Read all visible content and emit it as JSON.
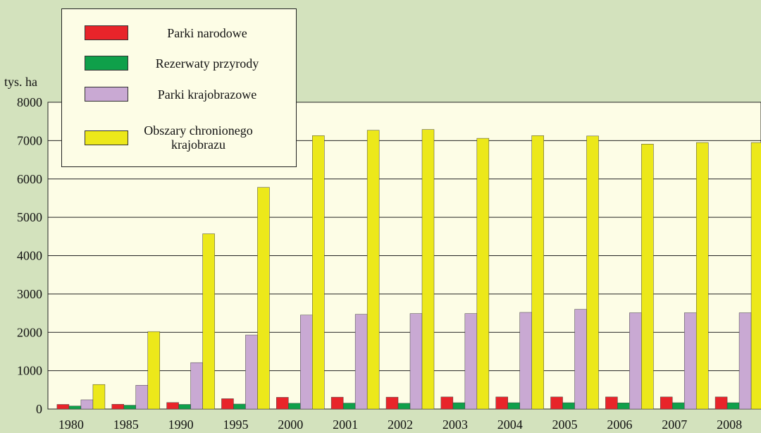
{
  "chart_data": {
    "type": "bar",
    "y_label": "tys. ha",
    "categories": [
      "1980",
      "1985",
      "1990",
      "1995",
      "2000",
      "2001",
      "2002",
      "2003",
      "2004",
      "2005",
      "2006",
      "2007",
      "2008"
    ],
    "series": [
      {
        "name": "Parki narodowe",
        "color": "#e8242a",
        "values": [
          120,
          125,
          170,
          270,
          305,
          310,
          310,
          315,
          315,
          315,
          315,
          315,
          315
        ]
      },
      {
        "name": "Rezerwaty przyrody",
        "color": "#0fa04a",
        "values": [
          80,
          100,
          120,
          130,
          150,
          155,
          150,
          165,
          165,
          165,
          160,
          165,
          165
        ]
      },
      {
        "name": "Parki krajobrazowe",
        "color": "#c9a9d3",
        "values": [
          240,
          620,
          1210,
          1930,
          2450,
          2470,
          2490,
          2490,
          2520,
          2600,
          2510,
          2510,
          2510
        ]
      },
      {
        "name": "Obszary chronionego krajobrazu",
        "color": "#ece81a",
        "values": [
          640,
          2020,
          4570,
          5780,
          7130,
          7270,
          7290,
          7060,
          7130,
          7120,
          6910,
          6950,
          6950
        ]
      }
    ],
    "ylim": [
      0,
      8000
    ],
    "yticks": [
      0,
      1000,
      2000,
      3000,
      4000,
      5000,
      6000,
      7000,
      8000
    ],
    "grid": true,
    "legend": "top-left"
  }
}
